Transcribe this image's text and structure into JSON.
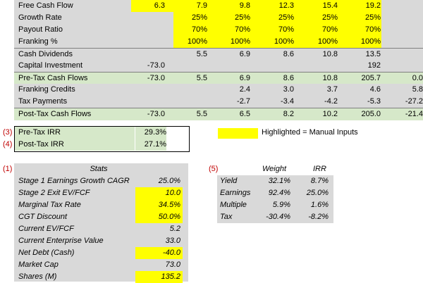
{
  "colors": {
    "yellow": "#ffff00",
    "grey": "#d9d9d9",
    "green": "#d6e8c9",
    "ref_red": "#c00000"
  },
  "table": {
    "rows": [
      {
        "label": "Free Cash Flow",
        "vals": [
          "6.3",
          "7.9",
          "9.8",
          "12.3",
          "15.4",
          "19.2",
          ""
        ]
      },
      {
        "label": "Growth Rate",
        "vals": [
          "",
          "25%",
          "25%",
          "25%",
          "25%",
          "25%",
          ""
        ]
      },
      {
        "label": "Payout Ratio",
        "vals": [
          "",
          "70%",
          "70%",
          "70%",
          "70%",
          "70%",
          ""
        ]
      },
      {
        "label": "Franking %",
        "vals": [
          "",
          "100%",
          "100%",
          "100%",
          "100%",
          "100%",
          ""
        ]
      },
      {
        "label": "Cash Dividends",
        "vals": [
          "",
          "5.5",
          "6.9",
          "8.6",
          "10.8",
          "13.5",
          ""
        ]
      },
      {
        "label": "Capital Investment",
        "vals": [
          "-73.0",
          "",
          "",
          "",
          "",
          "192",
          ""
        ]
      },
      {
        "label": "Pre-Tax Cash Flows",
        "vals": [
          "-73.0",
          "5.5",
          "6.9",
          "8.6",
          "10.8",
          "205.7",
          "0.0"
        ]
      },
      {
        "label": "Franking Credits",
        "vals": [
          "",
          "",
          "2.4",
          "3.0",
          "3.7",
          "4.6",
          "5.8"
        ]
      },
      {
        "label": "Tax Payments",
        "vals": [
          "",
          "",
          "-2.7",
          "-3.4",
          "-4.2",
          "-5.3",
          "-27.2"
        ]
      },
      {
        "label": "Post-Tax Cash Flows",
        "vals": [
          "-73.0",
          "5.5",
          "6.5",
          "8.2",
          "10.2",
          "205.0",
          "-21.4"
        ]
      }
    ]
  },
  "irr": {
    "pre_ref": "(3)",
    "pre_label": "Pre-Tax IRR",
    "pre_val": "29.3%",
    "post_ref": "(4)",
    "post_label": "Post-Tax IRR",
    "post_val": "27.1%"
  },
  "legend": {
    "text": "Highlighted = Manual Inputs"
  },
  "stats": {
    "ref": "(1)",
    "title": "Stats",
    "items": [
      {
        "label": "Stage 1 Earnings Growth CAGR",
        "val": "25.0%"
      },
      {
        "label": "Stage 2 Exit EV/FCF",
        "val": "10.0"
      },
      {
        "label": "Marginal Tax Rate",
        "val": "34.5%"
      },
      {
        "label": "CGT Discount",
        "val": "50.0%"
      },
      {
        "label": "Current EV/FCF",
        "val": "5.2"
      },
      {
        "label": "Current Enterprise Value",
        "val": "33.0"
      },
      {
        "label": "Net Debt (Cash)",
        "val": "-40.0"
      },
      {
        "label": "Market Cap",
        "val": "73.0"
      },
      {
        "label": "Shares (M)",
        "val": "135.2"
      }
    ]
  },
  "breakdown": {
    "ref": "(5)",
    "col_weight": "Weight",
    "col_irr": "IRR",
    "items": [
      {
        "label": "Yield",
        "weight": "32.1%",
        "irr": "8.7%"
      },
      {
        "label": "Earnings",
        "weight": "92.4%",
        "irr": "25.0%"
      },
      {
        "label": "Multiple",
        "weight": "5.9%",
        "irr": "1.6%"
      },
      {
        "label": "Tax",
        "weight": "-30.4%",
        "irr": "-8.2%"
      }
    ]
  }
}
